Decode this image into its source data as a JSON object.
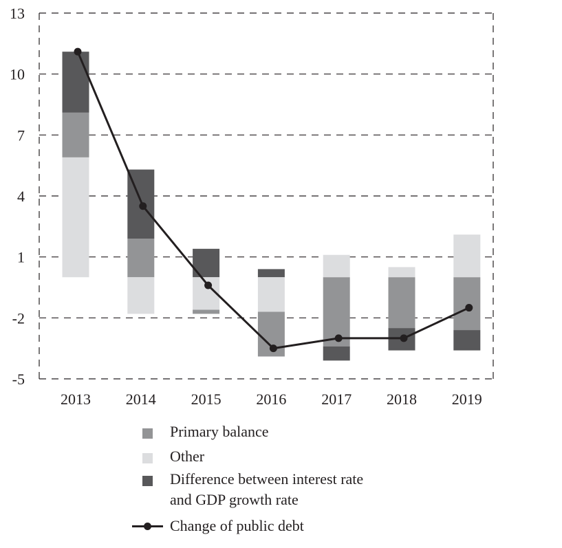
{
  "chart_data": {
    "type": "bar",
    "subtype": "stacked-bar-with-line",
    "title": "",
    "xlabel": "",
    "ylabel": "",
    "categories": [
      "2013",
      "2014",
      "2015",
      "2016",
      "2017",
      "2018",
      "2019"
    ],
    "ylim": [
      -5,
      13
    ],
    "yticks": [
      13,
      10,
      7,
      4,
      1,
      -2,
      -5
    ],
    "grid": true,
    "series": [
      {
        "name": "Primary balance",
        "kind": "bar",
        "color": "#939496",
        "values": [
          2.2,
          1.9,
          -0.2,
          -2.2,
          -3.4,
          -2.5,
          -2.6
        ]
      },
      {
        "name": "Other",
        "kind": "bar",
        "color": "#dcdddf",
        "values": [
          5.9,
          -1.8,
          -1.6,
          -1.7,
          1.1,
          0.5,
          2.1
        ]
      },
      {
        "name": "Difference between interest rate and GDP growth rate",
        "kind": "bar",
        "color": "#58585a",
        "values": [
          3.0,
          3.4,
          1.4,
          0.4,
          -0.7,
          -1.1,
          -1.0
        ]
      },
      {
        "name": "Change of public debt",
        "kind": "line",
        "color": "#231f20",
        "values": [
          11.1,
          3.5,
          -0.4,
          -3.5,
          -3.0,
          -3.0,
          -1.5
        ]
      }
    ],
    "legend_position": "bottom"
  },
  "legend": {
    "items": [
      {
        "label": "Primary balance",
        "type": "swatch",
        "color": "#939496"
      },
      {
        "label": "Other",
        "type": "swatch",
        "color": "#dcdddf"
      },
      {
        "label_line1": "Difference between interest rate",
        "label_line2": "and GDP growth rate",
        "type": "swatch",
        "color": "#58585a"
      },
      {
        "label": "Change of public debt",
        "type": "line",
        "color": "#231f20"
      }
    ]
  }
}
